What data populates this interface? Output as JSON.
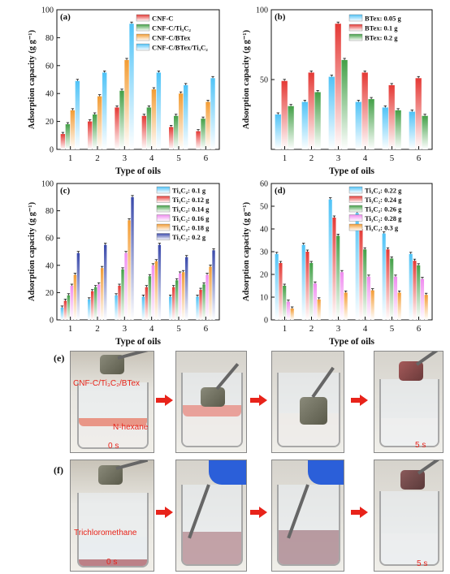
{
  "colors": {
    "red": "#e53935",
    "green": "#43a047",
    "orange": "#f39c33",
    "cyan": "#4fc3f7",
    "blue": "#3949ab",
    "pink": "#f08cf0",
    "accent_red": "#e8231a"
  },
  "chart_data": [
    {
      "panel": "(a)",
      "type": "bar",
      "xlabel": "Type of oils",
      "ylabel": "Adsorption capacity (g g⁻¹)",
      "categories": [
        "1",
        "2",
        "3",
        "4",
        "5",
        "6"
      ],
      "ylim": [
        0,
        100
      ],
      "yticks": [
        0,
        20,
        40,
        60,
        80,
        100
      ],
      "legend_position": "top-right",
      "series": [
        {
          "name": "CNF-C",
          "color": "#e53935",
          "values": [
            11,
            20,
            30,
            24,
            16,
            13
          ]
        },
        {
          "name": "CNF-C/Ti₃C₂",
          "color": "#43a047",
          "values": [
            18,
            25,
            42,
            30,
            24,
            22
          ]
        },
        {
          "name": "CNF-C/BTex",
          "color": "#f39c33",
          "values": [
            28,
            38,
            64,
            43,
            40,
            34
          ]
        },
        {
          "name": "CNF-C/BTex/Ti₃C₂",
          "color": "#4fc3f7",
          "values": [
            49,
            55,
            90,
            55,
            46,
            51
          ]
        }
      ]
    },
    {
      "panel": "(b)",
      "type": "bar",
      "xlabel": "Type of oils",
      "ylabel": "Adsorption capacity (g g⁻¹)",
      "categories": [
        "1",
        "2",
        "3",
        "4",
        "5",
        "6"
      ],
      "ylim": [
        0,
        100
      ],
      "yticks": [
        50,
        100
      ],
      "legend_position": "top-right",
      "series": [
        {
          "name": "BTex: 0.05 g",
          "color": "#4fc3f7",
          "values": [
            25,
            34,
            52,
            34,
            30,
            27
          ]
        },
        {
          "name": "BTex: 0.1 g",
          "color": "#e53935",
          "values": [
            49,
            55,
            90,
            55,
            46,
            51
          ]
        },
        {
          "name": "BTex: 0.2 g",
          "color": "#43a047",
          "values": [
            31,
            41,
            64,
            36,
            28,
            24
          ]
        }
      ]
    },
    {
      "panel": "(c)",
      "type": "bar",
      "xlabel": "Type of oils",
      "ylabel": "Adsorption capacity (g g⁻¹)",
      "categories": [
        "1",
        "2",
        "3",
        "4",
        "5",
        "6"
      ],
      "ylim": [
        0,
        100
      ],
      "yticks": [
        0,
        20,
        40,
        60,
        80,
        100
      ],
      "legend_position": "top-right",
      "series": [
        {
          "name": "Ti₃C₂: 0.1 g",
          "color": "#4fc3f7",
          "values": [
            9,
            15,
            18,
            17,
            17,
            17
          ]
        },
        {
          "name": "Ti₃C₂: 0.12 g",
          "color": "#e53935",
          "values": [
            14,
            21,
            25,
            24,
            24,
            22
          ]
        },
        {
          "name": "Ti₃C₂: 0.14 g",
          "color": "#43a047",
          "values": [
            18,
            24,
            37,
            32,
            29,
            26
          ]
        },
        {
          "name": "Ti₃C₂: 0.16 g",
          "color": "#f08cf0",
          "values": [
            25,
            26,
            49,
            40,
            34,
            33
          ]
        },
        {
          "name": "Ti₃C₂: 0.18 g",
          "color": "#f39c33",
          "values": [
            33,
            38,
            73,
            43,
            35,
            39
          ]
        },
        {
          "name": "Ti₃C₂: 0.2 g",
          "color": "#3949ab",
          "values": [
            49,
            55,
            90,
            55,
            46,
            51
          ]
        }
      ]
    },
    {
      "panel": "(d)",
      "type": "bar",
      "xlabel": "Type of oils",
      "ylabel": "Adsorption capacity (g g⁻¹)",
      "categories": [
        "1",
        "2",
        "3",
        "4",
        "5",
        "6"
      ],
      "ylim": [
        0,
        60
      ],
      "yticks": [
        0,
        10,
        20,
        30,
        40,
        50,
        60
      ],
      "legend_position": "top-right",
      "series": [
        {
          "name": "Ti₃C₂: 0.22 g",
          "color": "#4fc3f7",
          "values": [
            29,
            33,
            53,
            47,
            38,
            29
          ]
        },
        {
          "name": "Ti₃C₂: 0.24 g",
          "color": "#e53935",
          "values": [
            25,
            30,
            45,
            40,
            31,
            26
          ]
        },
        {
          "name": "Ti₃C₂: 0.26 g",
          "color": "#43a047",
          "values": [
            15,
            25,
            37,
            31,
            27,
            24
          ]
        },
        {
          "name": "Ti₃C₂: 0.28 g",
          "color": "#f08cf0",
          "values": [
            8,
            16,
            21,
            19,
            19,
            18
          ]
        },
        {
          "name": "Ti₃C₂: 0.3 g",
          "color": "#f39c33",
          "values": [
            5,
            9,
            12,
            13,
            12,
            11
          ]
        }
      ]
    }
  ],
  "photos": {
    "row_e": {
      "label": "(e)",
      "sample_label": "CNF-C/Ti₃C₂/BTex",
      "liquid_label": "N-hexane",
      "time_start": "0 s",
      "time_end": "5 s"
    },
    "row_f": {
      "label": "(f)",
      "liquid_label": "Trichloromethane",
      "time_start": "0 s",
      "time_end": "5 s"
    }
  }
}
